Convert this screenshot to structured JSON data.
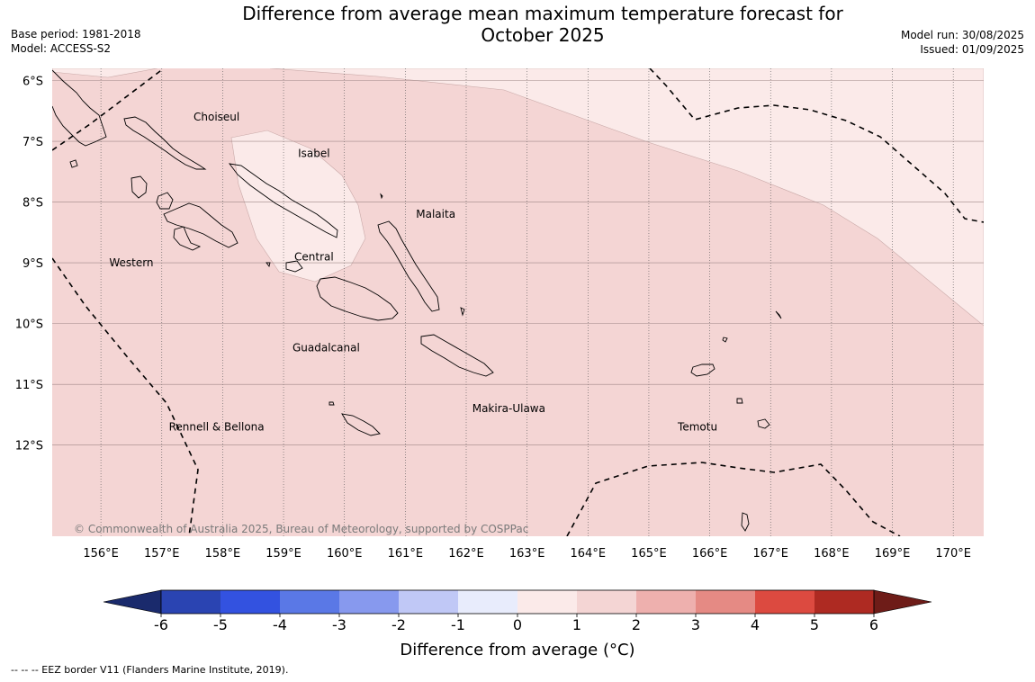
{
  "title_line1": "Difference from average mean maximum temperature forecast for",
  "title_line2": "October 2025",
  "base_period": "Base period: 1981-2018",
  "model": "Model: ACCESS-S2",
  "model_run": "Model run: 30/08/2025",
  "issued": "Issued: 01/09/2025",
  "copyright": "© Commonwealth of Australia 2025, Bureau of Meteorology, supported by COSPPac",
  "footer_note": "--  --  -- EEZ border V11 (Flanders Marine Institute, 2019).",
  "map": {
    "lon_range": [
      155.2,
      170.5
    ],
    "lat_range": [
      -13.5,
      -5.8
    ],
    "lon_ticks": [
      156,
      157,
      158,
      159,
      160,
      161,
      162,
      163,
      164,
      165,
      166,
      167,
      168,
      169,
      170
    ],
    "lon_tick_labels": [
      "156°E",
      "157°E",
      "158°E",
      "159°E",
      "160°E",
      "161°E",
      "162°E",
      "163°E",
      "164°E",
      "165°E",
      "166°E",
      "167°E",
      "168°E",
      "169°E",
      "170°E"
    ],
    "lat_ticks": [
      -6,
      -7,
      -8,
      -9,
      -10,
      -11,
      -12
    ],
    "lat_tick_labels": [
      "6°S",
      "7°S",
      "8°S",
      "9°S",
      "10°S",
      "11°S",
      "12°S"
    ],
    "base_anomaly_band": "1 to 2",
    "lighter_anomaly_band": "0 to 1",
    "colors": {
      "band_1_2": "#f4d5d4",
      "band_0_1": "#fbeae9",
      "grid": "#555555"
    },
    "province_labels": [
      {
        "name": "Choiseul",
        "lon": 157.9,
        "lat": -6.6
      },
      {
        "name": "Isabel",
        "lon": 159.5,
        "lat": -7.2
      },
      {
        "name": "Malaita",
        "lon": 161.5,
        "lat": -8.2
      },
      {
        "name": "Western",
        "lon": 156.5,
        "lat": -9.0
      },
      {
        "name": "Central",
        "lon": 159.5,
        "lat": -8.9
      },
      {
        "name": "Guadalcanal",
        "lon": 159.7,
        "lat": -10.4
      },
      {
        "name": "Makira-Ulawa",
        "lon": 162.7,
        "lat": -11.4
      },
      {
        "name": "Rennell & Bellona",
        "lon": 157.9,
        "lat": -11.7
      },
      {
        "name": "Temotu",
        "lon": 165.8,
        "lat": -11.7
      }
    ]
  },
  "colorbar": {
    "label": "Difference from average (°C)",
    "ticks": [
      "-6",
      "-5",
      "-4",
      "-3",
      "-2",
      "-1",
      "0",
      "1",
      "2",
      "3",
      "4",
      "5",
      "6"
    ],
    "colors": [
      "#1a2a6c",
      "#2a44b2",
      "#3352e0",
      "#5a78e6",
      "#8799ee",
      "#c0c8f6",
      "#e8ecfc",
      "#fbeae9",
      "#f4d5d4",
      "#eeb0ae",
      "#e58a84",
      "#dc4a40",
      "#ae2a22",
      "#6e1c18"
    ]
  }
}
